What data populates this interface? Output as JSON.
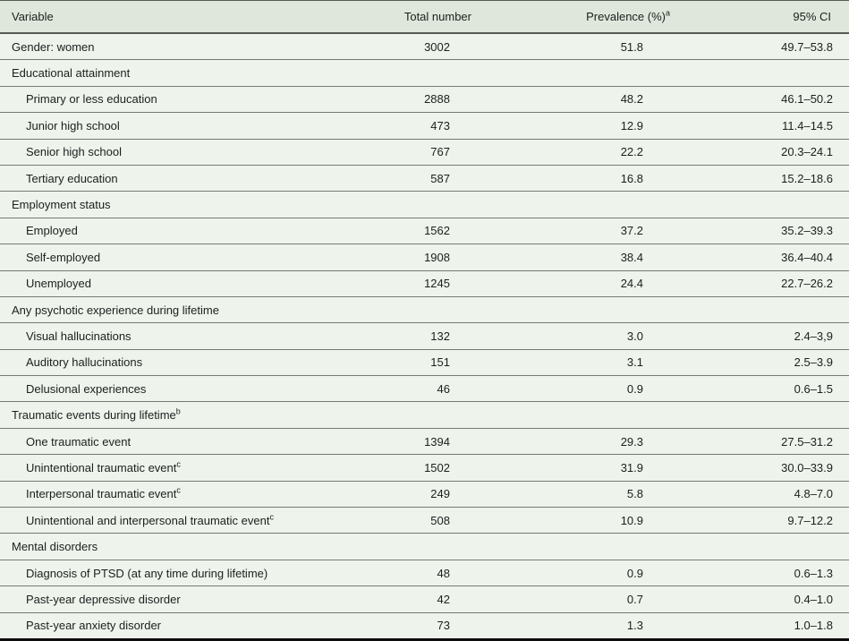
{
  "table": {
    "title_semantic": "Prevalence table",
    "colors": {
      "header_background": "#dfe7dc",
      "row_background": "#eef3ec",
      "rule_dark": "#565b54",
      "rule_light": "#757a71",
      "bottom_border": "#0c0c0c",
      "text": "#1d1f1d"
    },
    "columns": [
      {
        "label": "Variable"
      },
      {
        "label": "Total number"
      },
      {
        "label": "Prevalence (%)",
        "sup": "a"
      },
      {
        "label": "95% CI"
      }
    ],
    "rows": [
      {
        "indent": 0,
        "label": "Gender: women",
        "total": "3002",
        "prevalence": "51.8",
        "ci": "49.7–53.8"
      },
      {
        "section": true,
        "indent": 0,
        "label": "Educational attainment",
        "total": "",
        "prevalence": "",
        "ci": ""
      },
      {
        "indent": 1,
        "label": "Primary or less education",
        "total": "2888",
        "prevalence": "48.2",
        "ci": "46.1–50.2"
      },
      {
        "indent": 1,
        "label": "Junior high school",
        "total": "473",
        "prevalence": "12.9",
        "ci": "11.4–14.5"
      },
      {
        "indent": 1,
        "label": "Senior high school",
        "total": "767",
        "prevalence": "22.2",
        "ci": "20.3–24.1"
      },
      {
        "indent": 1,
        "label": "Tertiary education",
        "total": "587",
        "prevalence": "16.8",
        "ci": "15.2–18.6"
      },
      {
        "section": true,
        "indent": 0,
        "label": "Employment status",
        "total": "",
        "prevalence": "",
        "ci": ""
      },
      {
        "indent": 1,
        "label": "Employed",
        "total": "1562",
        "prevalence": "37.2",
        "ci": "35.2–39.3"
      },
      {
        "indent": 1,
        "label": "Self-employed",
        "total": "1908",
        "prevalence": "38.4",
        "ci": "36.4–40.4"
      },
      {
        "indent": 1,
        "label": "Unemployed",
        "total": "1245",
        "prevalence": "24.4",
        "ci": "22.7–26.2"
      },
      {
        "section": true,
        "indent": 0,
        "label": "Any psychotic experience during lifetime",
        "total": "",
        "prevalence": "",
        "ci": ""
      },
      {
        "indent": 1,
        "label": "Visual hallucinations",
        "total": "132",
        "prevalence": "3.0",
        "ci": "2.4–3,9"
      },
      {
        "indent": 1,
        "label": "Auditory hallucinations",
        "total": "151",
        "prevalence": "3.1",
        "ci": "2.5–3.9"
      },
      {
        "indent": 1,
        "label": "Delusional experiences",
        "total": "46",
        "prevalence": "0.9",
        "ci": "0.6–1.5"
      },
      {
        "section": true,
        "indent": 0,
        "label": "Traumatic events during lifetime",
        "sup": "b",
        "total": "",
        "prevalence": "",
        "ci": ""
      },
      {
        "indent": 1,
        "label": "One traumatic event",
        "total": "1394",
        "prevalence": "29.3",
        "ci": "27.5–31.2"
      },
      {
        "indent": 1,
        "label": "Unintentional traumatic event",
        "sup": "c",
        "total": "1502",
        "prevalence": "31.9",
        "ci": "30.0–33.9"
      },
      {
        "indent": 1,
        "label": "Interpersonal traumatic event",
        "sup": "c",
        "total": "249",
        "prevalence": "5.8",
        "ci": "4.8–7.0"
      },
      {
        "indent": 1,
        "label": "Unintentional and interpersonal traumatic event",
        "sup": "c",
        "total": "508",
        "prevalence": "10.9",
        "ci": "9.7–12.2"
      },
      {
        "section": true,
        "indent": 0,
        "label": "Mental disorders",
        "total": "",
        "prevalence": "",
        "ci": ""
      },
      {
        "indent": 1,
        "label": "Diagnosis of PTSD (at any time during lifetime)",
        "total": "48",
        "prevalence": "0.9",
        "ci": "0.6–1.3"
      },
      {
        "indent": 1,
        "label": "Past-year depressive disorder",
        "total": "42",
        "prevalence": "0.7",
        "ci": "0.4–1.0"
      },
      {
        "indent": 1,
        "label": "Past-year anxiety disorder",
        "total": "73",
        "prevalence": "1.3",
        "ci": "1.0–1.8"
      }
    ]
  }
}
